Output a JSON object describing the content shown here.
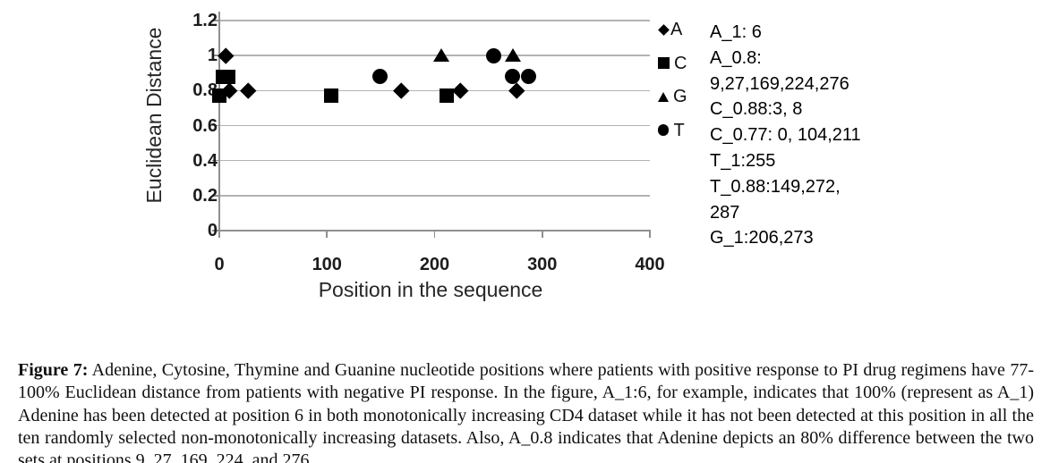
{
  "chart_data": {
    "type": "scatter",
    "title": "",
    "xlabel": "Position in the sequence",
    "ylabel": "Euclidean Distance",
    "xlim": [
      0,
      400
    ],
    "ylim": [
      0,
      1.2
    ],
    "x_ticks": [
      "0",
      "100",
      "200",
      "300",
      "400"
    ],
    "y_ticks": [
      "1.2",
      "1",
      "0.8",
      "0.6",
      "0.4",
      "0.2",
      "0"
    ],
    "grid": "horizontal",
    "legend_position": "right",
    "series": [
      {
        "name": "A",
        "symbol": "diamond",
        "points": [
          {
            "x": 6,
            "y": 1
          },
          {
            "x": 9,
            "y": 0.8
          },
          {
            "x": 27,
            "y": 0.8
          },
          {
            "x": 169,
            "y": 0.8
          },
          {
            "x": 224,
            "y": 0.8
          },
          {
            "x": 276,
            "y": 0.8
          }
        ]
      },
      {
        "name": "C",
        "symbol": "square",
        "points": [
          {
            "x": 3,
            "y": 0.88
          },
          {
            "x": 8,
            "y": 0.88
          },
          {
            "x": 0,
            "y": 0.77
          },
          {
            "x": 104,
            "y": 0.77
          },
          {
            "x": 211,
            "y": 0.77
          }
        ]
      },
      {
        "name": "G",
        "symbol": "triangle",
        "points": [
          {
            "x": 206,
            "y": 1
          },
          {
            "x": 273,
            "y": 1
          }
        ]
      },
      {
        "name": "T",
        "symbol": "circle",
        "points": [
          {
            "x": 255,
            "y": 1
          },
          {
            "x": 149,
            "y": 0.88
          },
          {
            "x": 272,
            "y": 0.88
          },
          {
            "x": 287,
            "y": 0.88
          }
        ]
      }
    ],
    "annotation_lines": [
      "A_1: 6",
      "A_0.8:",
      "9,27,169,224,276",
      "C_0.88:3, 8",
      "C_0.77: 0, 104,211",
      "T_1:255",
      "T_0.88:149,272,",
      "287",
      "G_1:206,273"
    ]
  },
  "colors": {
    "marker": "#000000",
    "gridline": "#b3b3b3",
    "axis": "#8f8f8f",
    "tick_text": "#1c1c1c",
    "background": "#ffffff"
  },
  "caption": {
    "label": "Figure 7:",
    "text": "Adenine, Cytosine, Thymine and Guanine nucleotide positions where patients with positive response to PI drug regimens have 77-100% Euclidean distance from patients with negative PI response. In the figure, A_1:6, for example, indicates that 100% (represent as A_1) Adenine has been detected at position 6 in both monotonically increasing CD4 dataset while it has not been detected at this position in all the ten randomly selected non-monotonically increasing datasets. Also, A_0.8 indicates that Adenine depicts an 80% difference between the two sets at positions 9, 27, 169, 224, and 276."
  }
}
